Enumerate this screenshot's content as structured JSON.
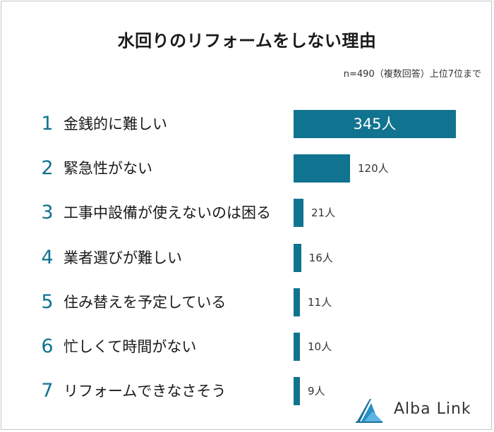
{
  "title": "水回りのリフォームをしない理由",
  "subtitle": "n=490（複数回答）上位7位まで",
  "brand": "Alba Link",
  "colors": {
    "bar": "#10738f",
    "rank": "#10738f"
  },
  "chart_data": {
    "type": "bar",
    "orientation": "horizontal",
    "categories": [
      "金銭的に難しい",
      "緊急性がない",
      "工事中設備が使えないのは困る",
      "業者選びが難しい",
      "住み替えを予定している",
      "忙しくて時間がない",
      "リフォームできなさそう"
    ],
    "ranks": [
      "1",
      "2",
      "3",
      "4",
      "5",
      "6",
      "7"
    ],
    "values": [
      345,
      120,
      21,
      16,
      11,
      10,
      9
    ],
    "value_labels": [
      "345人",
      "120人",
      "21人",
      "16人",
      "11人",
      "10人",
      "9人"
    ],
    "xlim": [
      0,
      345
    ]
  }
}
